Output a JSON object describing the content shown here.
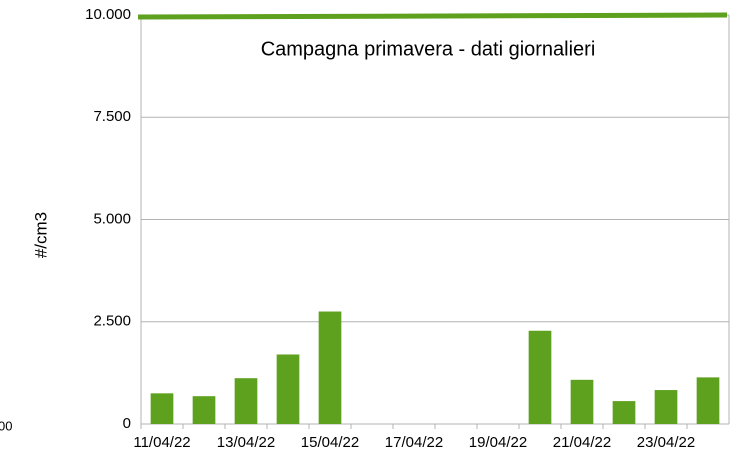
{
  "chart_data": {
    "type": "bar",
    "title": "Campagna primavera - dati giornalieri",
    "y_label": "#/cm3",
    "clipped_label": "00",
    "categories": [
      "11/04/22",
      null,
      "13/04/22",
      null,
      "15/04/22",
      null,
      "17/04/22",
      null,
      "19/04/22",
      null,
      "21/04/22",
      null,
      "23/04/22",
      null
    ],
    "values": [
      750,
      680,
      1120,
      1700,
      2750,
      null,
      null,
      null,
      null,
      2280,
      1080,
      560,
      830,
      1140
    ],
    "color": "#5ea11e",
    "reference_line": {
      "color": "#5ea11e",
      "values": [
        9950,
        10000
      ]
    },
    "ylim": [
      0,
      10000
    ],
    "yticks": [
      0,
      {
        "value": 2500,
        "label": "2.500"
      },
      {
        "value": 5000,
        "label": "5.000"
      },
      {
        "value": 7500,
        "label": "7.500"
      },
      {
        "value": 10000,
        "label": "10.000"
      }
    ],
    "grid": true
  }
}
